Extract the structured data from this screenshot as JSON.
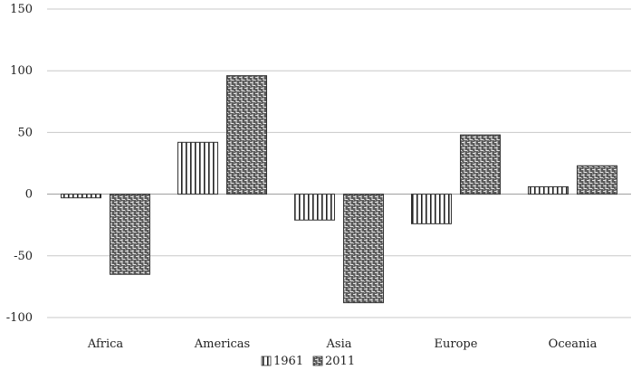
{
  "chart_data": {
    "type": "bar",
    "categories": [
      "Africa",
      "Americas",
      "Asia",
      "Europe",
      "Oceania"
    ],
    "series": [
      {
        "name": "1961",
        "values": [
          -3,
          42,
          -21,
          -24,
          6
        ],
        "pattern": "vertical-stripes"
      },
      {
        "name": "2011",
        "values": [
          -65,
          96,
          -88,
          48,
          23
        ],
        "pattern": "dense-weave"
      }
    ],
    "title": "",
    "xlabel": "",
    "ylabel": "",
    "ylim": [
      -100,
      150
    ],
    "yticks": [
      "150",
      "100",
      "50",
      "0",
      "-50",
      "-100"
    ],
    "ytick_values": [
      150,
      100,
      50,
      0,
      -50,
      -100
    ],
    "grid": "horizontal",
    "legend": "bottom-center",
    "colors": {
      "bar_outline": "#333333",
      "grid": "#c8c8c8",
      "zero_line": "#9a9a9a"
    }
  }
}
